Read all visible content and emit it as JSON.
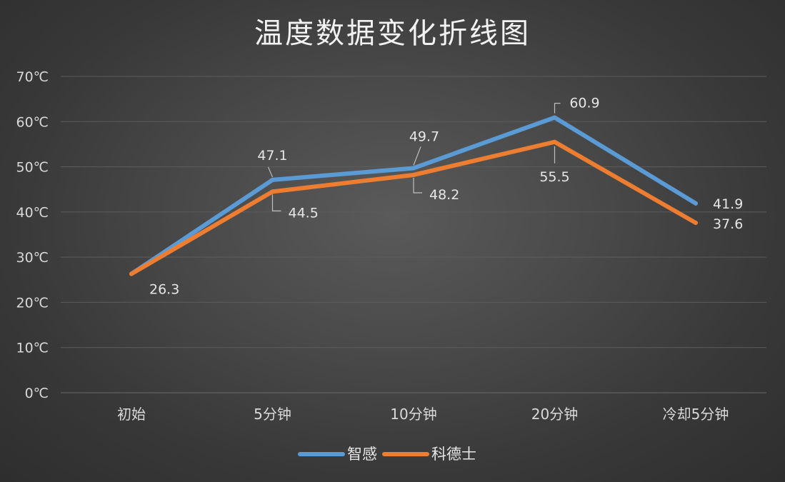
{
  "chart_data": {
    "type": "line",
    "title": "温度数据变化折线图",
    "categories": [
      "初始",
      "5分钟",
      "10分钟",
      "20分钟",
      "冷却5分钟"
    ],
    "ylim": [
      0,
      70
    ],
    "yticks": [
      "0℃",
      "10℃",
      "20℃",
      "30℃",
      "40℃",
      "50℃",
      "60℃",
      "70℃"
    ],
    "grid": true,
    "legend_position": "bottom",
    "series": [
      {
        "name": "智感",
        "color": "#5b9bd5",
        "values": [
          26.3,
          47.1,
          49.7,
          60.9,
          41.9
        ],
        "labels": [
          "",
          "47.1",
          "49.7",
          "60.9",
          "41.9"
        ]
      },
      {
        "name": "科德士",
        "color": "#ed7d31",
        "values": [
          26.3,
          44.5,
          48.2,
          55.5,
          37.6
        ],
        "labels": [
          "26.3",
          "44.5",
          "48.2",
          "55.5",
          "37.6"
        ]
      }
    ]
  }
}
